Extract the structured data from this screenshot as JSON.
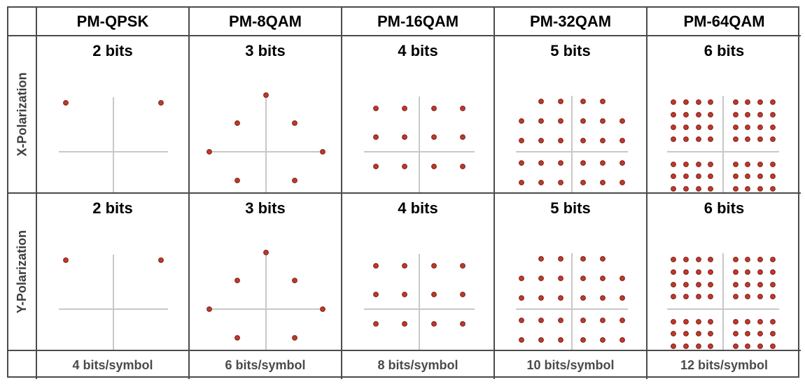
{
  "columns": [
    {
      "id": "qpsk",
      "title": "PM-QPSK",
      "bits_per_pol": "2 bits",
      "total": "4 bits/symbol"
    },
    {
      "id": "8qam",
      "title": "PM-8QAM",
      "bits_per_pol": "3 bits",
      "total": "6 bits/symbol"
    },
    {
      "id": "16qam",
      "title": "PM-16QAM",
      "bits_per_pol": "4 bits",
      "total": "8 bits/symbol"
    },
    {
      "id": "32qam",
      "title": "PM-32QAM",
      "bits_per_pol": "5 bits",
      "total": "10 bits/symbol"
    },
    {
      "id": "64qam",
      "title": "PM-64QAM",
      "bits_per_pol": "6 bits",
      "total": "12 bits/symbol"
    }
  ],
  "rows": [
    {
      "id": "x",
      "label": "X-Polarization"
    },
    {
      "id": "y",
      "label": "Y-Polarization"
    }
  ],
  "colors": {
    "point_fill": "#c0392b",
    "point_stroke": "#7a1c14",
    "axis": "#c8c8c8",
    "border": "#4b4b4b"
  }
}
